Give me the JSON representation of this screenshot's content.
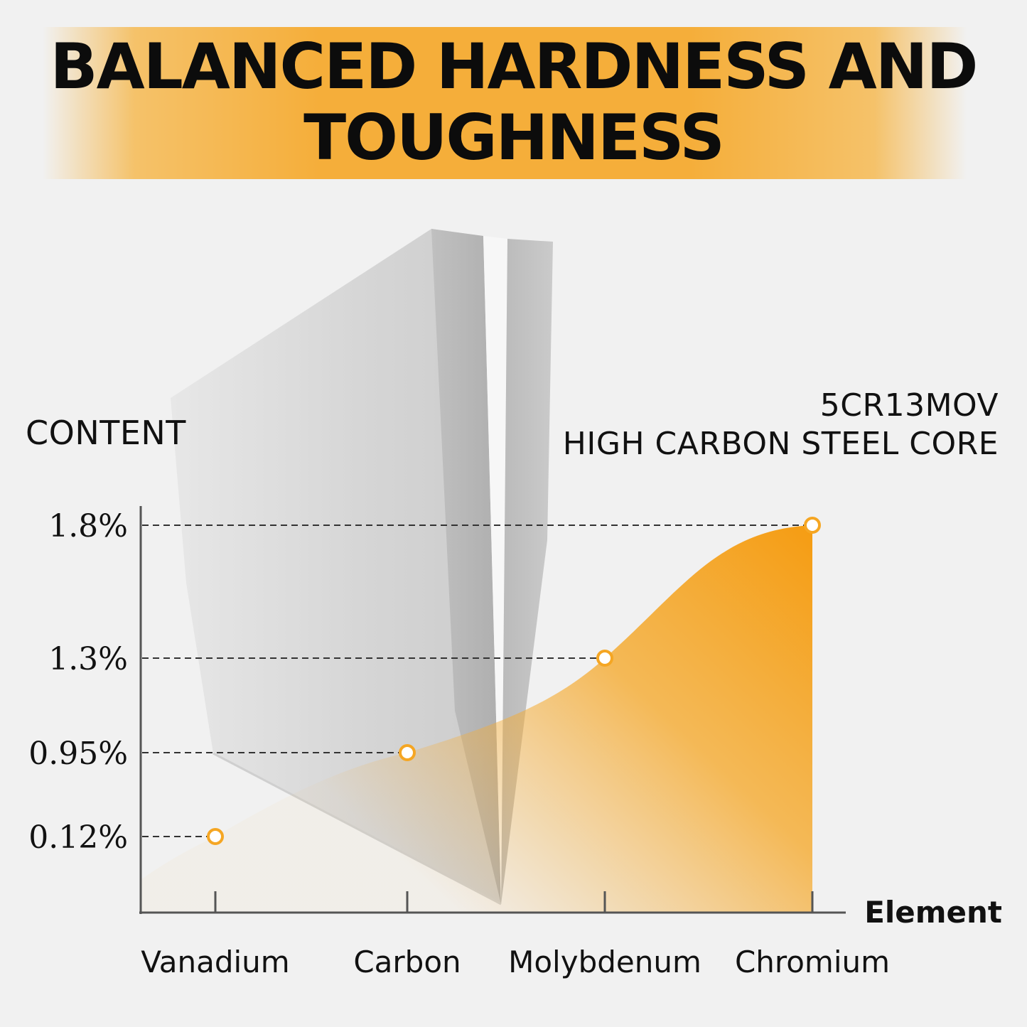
{
  "header": {
    "title_line1": "BALANCED HARDNESS AND",
    "title_line2": "TOUGHNESS"
  },
  "labels": {
    "content": "CONTENT",
    "steel_line1": "5CR13MOV",
    "steel_line2": "HIGH CARBON STEEL CORE"
  },
  "colors": {
    "accent": "#f5a623",
    "banner": "#f5ae3a",
    "axis": "#555555"
  },
  "chart_data": {
    "type": "area",
    "title": "",
    "xlabel": "Element",
    "ylabel": "CONTENT",
    "categories": [
      "Vanadium",
      "Carbon",
      "Molybdenum",
      "Chromium"
    ],
    "values": [
      0.12,
      0.95,
      1.3,
      1.8
    ],
    "y_tick_labels": [
      "1.8%",
      "1.3%",
      "0.95%",
      "0.12%"
    ],
    "grid": false
  }
}
